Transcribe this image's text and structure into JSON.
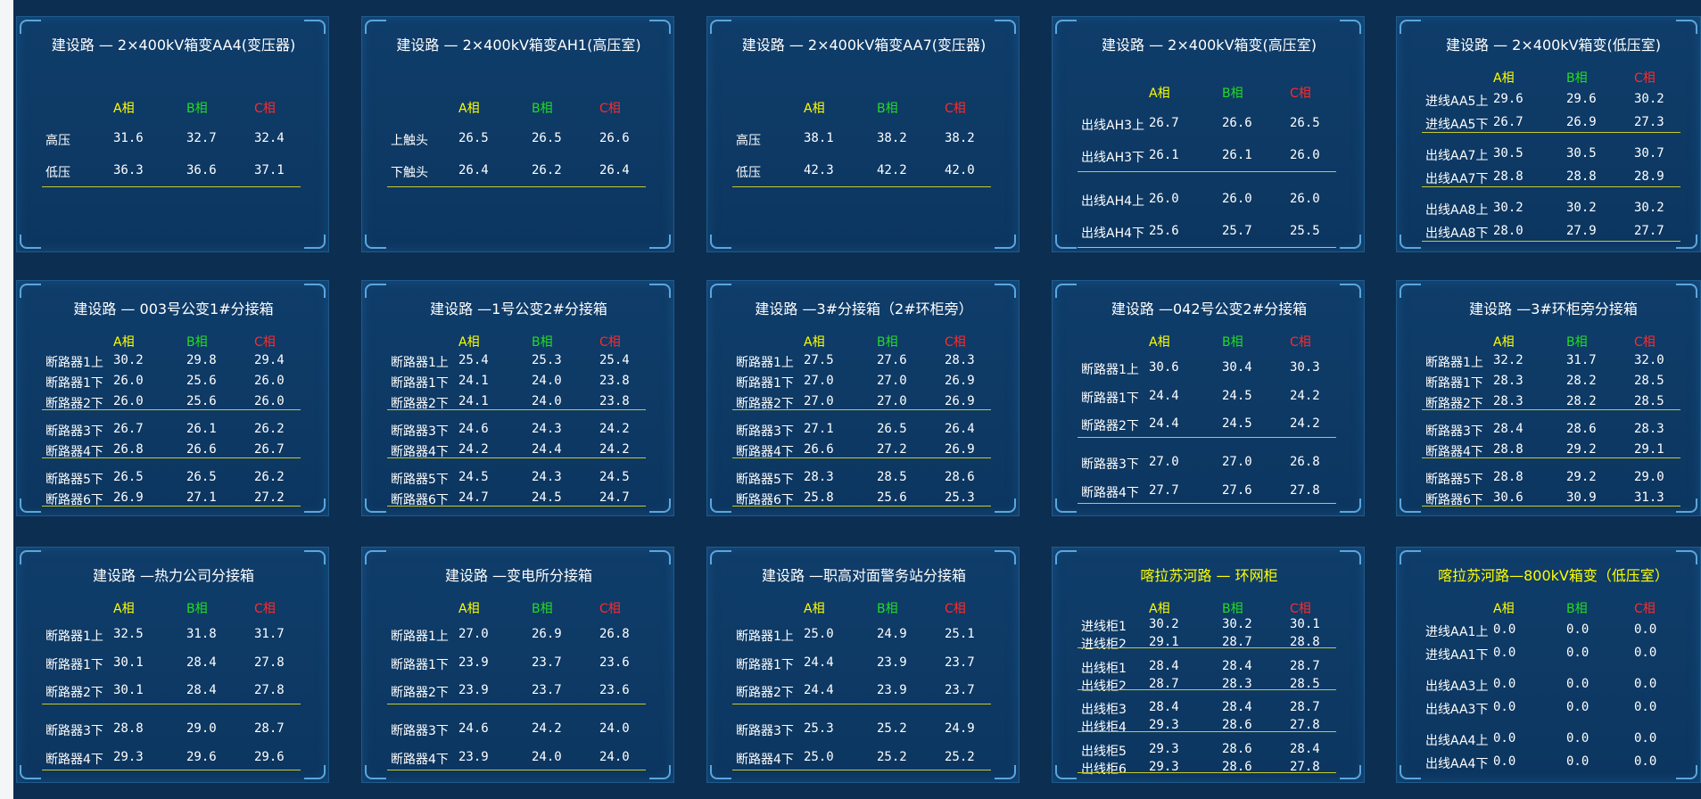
{
  "phases": [
    "A相",
    "B相",
    "C相"
  ],
  "panels": [
    {
      "title": "建设路 — 2×400kV箱变AA4(变压器)",
      "groups": [
        [
          [
            "高压",
            "31.6",
            "32.7",
            "32.4"
          ],
          [
            "低压",
            "36.3",
            "36.6",
            "37.1"
          ]
        ]
      ]
    },
    {
      "title": "建设路 — 2×400kV箱变AH1(高压室)",
      "groups": [
        [
          [
            "上触头",
            "26.5",
            "26.5",
            "26.6"
          ],
          [
            "下触头",
            "26.4",
            "26.2",
            "26.4"
          ]
        ]
      ]
    },
    {
      "title": "建设路 — 2×400kV箱变AA7(变压器)",
      "groups": [
        [
          [
            "高压",
            "38.1",
            "38.2",
            "38.2"
          ],
          [
            "低压",
            "42.3",
            "42.2",
            "42.0"
          ]
        ]
      ]
    },
    {
      "title": "建设路 — 2×400kV箱变(高压室)",
      "groups": [
        [
          [
            "出线AH3上",
            "26.7",
            "26.6",
            "26.5"
          ],
          [
            "出线AH3下",
            "26.1",
            "26.1",
            "26.0"
          ]
        ],
        [
          [
            "出线AH4上",
            "26.0",
            "26.0",
            "26.0"
          ],
          [
            "出线AH4下",
            "25.6",
            "25.7",
            "25.5"
          ]
        ]
      ]
    },
    {
      "title": "建设路 — 2×400kV箱变(低压室)",
      "groups": [
        [
          [
            "进线AA5上",
            "29.6",
            "29.6",
            "30.2"
          ],
          [
            "进线AA5下",
            "26.7",
            "26.9",
            "27.3"
          ]
        ],
        [
          [
            "出线AA7上",
            "30.5",
            "30.5",
            "30.7"
          ],
          [
            "出线AA7下",
            "28.8",
            "28.8",
            "28.9"
          ]
        ],
        [
          [
            "出线AA8上",
            "30.2",
            "30.2",
            "30.2"
          ],
          [
            "出线AA8下",
            "28.0",
            "27.9",
            "27.7"
          ]
        ]
      ]
    },
    {
      "title": "建设路 — 003号公变1#分接箱",
      "groups": [
        [
          [
            "断路器1上",
            "30.2",
            "29.8",
            "29.4"
          ],
          [
            "断路器1下",
            "26.0",
            "25.6",
            "26.0"
          ],
          [
            "断路器2下",
            "26.0",
            "25.6",
            "26.0"
          ]
        ],
        [
          [
            "断路器3下",
            "26.7",
            "26.1",
            "26.2"
          ],
          [
            "断路器4下",
            "26.8",
            "26.6",
            "26.7"
          ]
        ],
        [
          [
            "断路器5下",
            "26.5",
            "26.5",
            "26.2"
          ],
          [
            "断路器6下",
            "26.9",
            "27.1",
            "27.2"
          ]
        ]
      ]
    },
    {
      "title": "建设路 —1号公变2#分接箱",
      "groups": [
        [
          [
            "断路器1上",
            "25.4",
            "25.3",
            "25.4"
          ],
          [
            "断路器1下",
            "24.1",
            "24.0",
            "23.8"
          ],
          [
            "断路器2下",
            "24.1",
            "24.0",
            "23.8"
          ]
        ],
        [
          [
            "断路器3下",
            "24.6",
            "24.3",
            "24.2"
          ],
          [
            "断路器4下",
            "24.2",
            "24.4",
            "24.2"
          ]
        ],
        [
          [
            "断路器5下",
            "24.5",
            "24.3",
            "24.5"
          ],
          [
            "断路器6下",
            "24.7",
            "24.5",
            "24.7"
          ]
        ]
      ]
    },
    {
      "title": "建设路 —3#分接箱（2#环柜旁）",
      "groups": [
        [
          [
            "断路器1上",
            "27.5",
            "27.6",
            "28.3"
          ],
          [
            "断路器1下",
            "27.0",
            "27.0",
            "26.9"
          ],
          [
            "断路器2下",
            "27.0",
            "27.0",
            "26.9"
          ]
        ],
        [
          [
            "断路器3下",
            "27.1",
            "26.5",
            "26.4"
          ],
          [
            "断路器4下",
            "26.6",
            "27.2",
            "26.9"
          ]
        ],
        [
          [
            "断路器5下",
            "28.3",
            "28.5",
            "28.6"
          ],
          [
            "断路器6下",
            "25.8",
            "25.6",
            "25.3"
          ]
        ]
      ]
    },
    {
      "title": "建设路 —042号公变2#分接箱",
      "groups": [
        [
          [
            "断路器1上",
            "30.6",
            "30.4",
            "30.3"
          ],
          [
            "断路器1下",
            "24.4",
            "24.5",
            "24.2"
          ],
          [
            "断路器2下",
            "24.4",
            "24.5",
            "24.2"
          ]
        ],
        [
          [
            "断路器3下",
            "27.0",
            "27.0",
            "26.8"
          ],
          [
            "断路器4下",
            "27.7",
            "27.6",
            "27.8"
          ]
        ]
      ]
    },
    {
      "title": "建设路 —3#环柜旁分接箱",
      "groups": [
        [
          [
            "断路器1上",
            "32.2",
            "31.7",
            "32.0"
          ],
          [
            "断路器1下",
            "28.3",
            "28.2",
            "28.5"
          ],
          [
            "断路器2下",
            "28.3",
            "28.2",
            "28.5"
          ]
        ],
        [
          [
            "断路器3下",
            "28.4",
            "28.6",
            "28.3"
          ],
          [
            "断路器4下",
            "28.8",
            "29.2",
            "29.1"
          ]
        ],
        [
          [
            "断路器5下",
            "28.8",
            "29.2",
            "29.0"
          ],
          [
            "断路器6下",
            "30.6",
            "30.9",
            "31.3"
          ]
        ]
      ]
    },
    {
      "title": "建设路 —热力公司分接箱",
      "groups": [
        [
          [
            "断路器1上",
            "32.5",
            "31.8",
            "31.7"
          ],
          [
            "断路器1下",
            "30.1",
            "28.4",
            "27.8"
          ],
          [
            "断路器2下",
            "30.1",
            "28.4",
            "27.8"
          ]
        ],
        [
          [
            "断路器3下",
            "28.8",
            "29.0",
            "28.7"
          ],
          [
            "断路器4下",
            "29.3",
            "29.6",
            "29.6"
          ]
        ]
      ]
    },
    {
      "title": "建设路 —变电所分接箱",
      "groups": [
        [
          [
            "断路器1上",
            "27.0",
            "26.9",
            "26.8"
          ],
          [
            "断路器1下",
            "23.9",
            "23.7",
            "23.6"
          ],
          [
            "断路器2下",
            "23.9",
            "23.7",
            "23.6"
          ]
        ],
        [
          [
            "断路器3下",
            "24.6",
            "24.2",
            "24.0"
          ],
          [
            "断路器4下",
            "23.9",
            "24.0",
            "24.0"
          ]
        ]
      ]
    },
    {
      "title": "建设路 —职高对面警务站分接箱",
      "groups": [
        [
          [
            "断路器1上",
            "25.0",
            "24.9",
            "25.1"
          ],
          [
            "断路器1下",
            "24.4",
            "23.9",
            "23.7"
          ],
          [
            "断路器2下",
            "24.4",
            "23.9",
            "23.7"
          ]
        ],
        [
          [
            "断路器3下",
            "25.3",
            "25.2",
            "24.9"
          ],
          [
            "断路器4下",
            "25.0",
            "25.2",
            "25.2"
          ]
        ]
      ]
    },
    {
      "title": "喀拉苏河路 — 环网柜",
      "title_color": "#ffff00",
      "groups": [
        [
          [
            "进线柜1",
            "30.2",
            "30.2",
            "30.1"
          ],
          [
            "进线柜2",
            "29.1",
            "28.7",
            "28.8"
          ]
        ],
        [
          [
            "出线柜1",
            "28.4",
            "28.4",
            "28.7"
          ],
          [
            "出线柜2",
            "28.7",
            "28.3",
            "28.5"
          ]
        ],
        [
          [
            "出线柜3",
            "28.4",
            "28.4",
            "28.7"
          ],
          [
            "出线柜4",
            "29.3",
            "28.6",
            "27.8"
          ]
        ],
        [
          [
            "出线柜5",
            "29.3",
            "28.6",
            "28.4"
          ],
          [
            "出线柜6",
            "29.3",
            "28.6",
            "27.8"
          ]
        ]
      ]
    },
    {
      "title": "喀拉苏河路—800kV箱变（低压室）",
      "title_color": "#ffff00",
      "separators": false,
      "groups": [
        [
          [
            "进线AA1上",
            "0.0",
            "0.0",
            "0.0"
          ],
          [
            "进线AA1下",
            "0.0",
            "0.0",
            "0.0"
          ]
        ],
        [
          [
            "出线AA3上",
            "0.0",
            "0.0",
            "0.0"
          ],
          [
            "出线AA3下",
            "0.0",
            "0.0",
            "0.0"
          ]
        ],
        [
          [
            "出线AA4上",
            "0.0",
            "0.0",
            "0.0"
          ],
          [
            "出线AA4下",
            "0.0",
            "0.0",
            "0.0"
          ]
        ]
      ]
    }
  ]
}
